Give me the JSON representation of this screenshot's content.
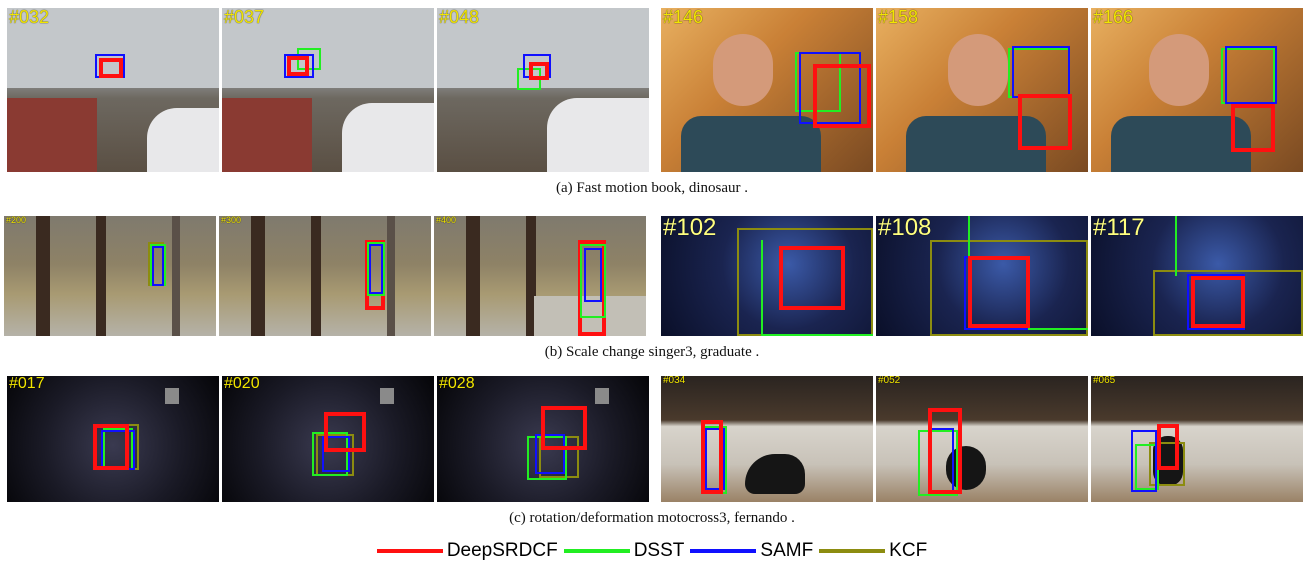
{
  "rows": [
    {
      "caption": "(a) Fast motion book, dinosaur .",
      "frames": [
        {
          "num": "#032"
        },
        {
          "num": "#037"
        },
        {
          "num": "#048"
        },
        {
          "num": "#146"
        },
        {
          "num": "#158"
        },
        {
          "num": "#166"
        }
      ]
    },
    {
      "caption": "(b) Scale change singer3, graduate .",
      "frames": [
        {
          "num": "#200"
        },
        {
          "num": "#300"
        },
        {
          "num": "#400"
        },
        {
          "num": "#102"
        },
        {
          "num": "#108"
        },
        {
          "num": "#117"
        }
      ]
    },
    {
      "caption": "(c) rotation/deformation motocross3, fernando .",
      "frames": [
        {
          "num": "#017"
        },
        {
          "num": "#020"
        },
        {
          "num": "#028"
        },
        {
          "num": "#034"
        },
        {
          "num": "#052"
        },
        {
          "num": "#065"
        }
      ]
    }
  ],
  "legend": [
    {
      "label": "DeepSRDCF",
      "color": "#ff1010"
    },
    {
      "label": "DSST",
      "color": "#22ee22"
    },
    {
      "label": "SAMF",
      "color": "#1010ff"
    },
    {
      "label": "KCF",
      "color": "#8c8c10"
    }
  ]
}
